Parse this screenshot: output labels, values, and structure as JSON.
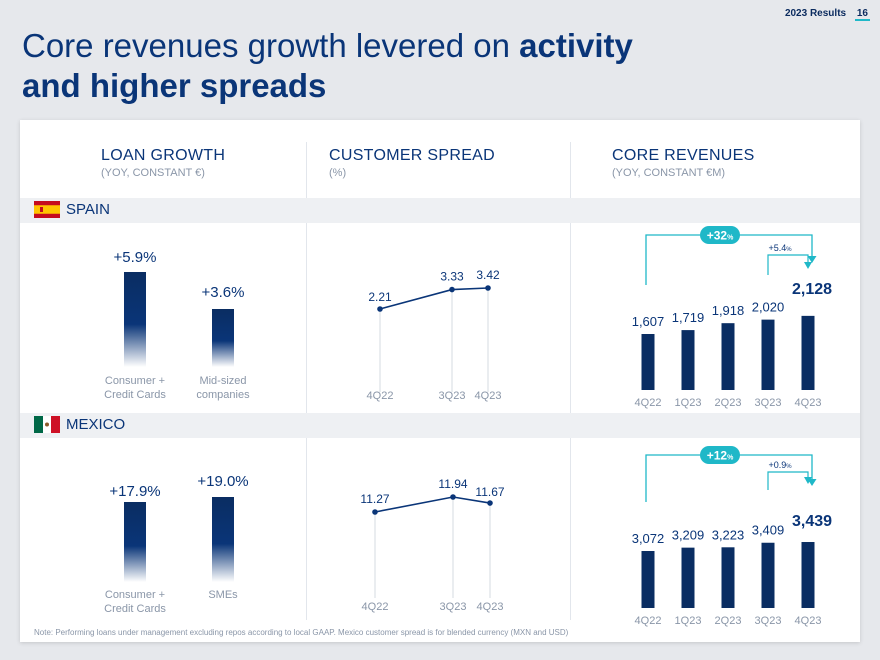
{
  "header": {
    "report": "2023 Results",
    "page": "16"
  },
  "title": {
    "line1_normal": "Core revenues growth levered on ",
    "line1_bold": "activity",
    "line2_bold": "and higher spreads"
  },
  "columns": {
    "loan": {
      "title": "LOAN GROWTH",
      "subtitle": "(YOY, CONSTANT €)"
    },
    "spread": {
      "title": "CUSTOMER SPREAD",
      "subtitle": "(%)"
    },
    "core": {
      "title": "CORE REVENUES",
      "subtitle": "(YOY, CONSTANT €M)"
    }
  },
  "regions": {
    "spain": "SPAIN",
    "mexico": "MEXICO"
  },
  "colors": {
    "navy": "#0a3578",
    "teal": "#1fb8c8",
    "grey": "#8a96a8"
  },
  "note": "Note: Performing loans under management excluding repos according to local GAAP. Mexico customer spread is for blended currency (MXN and USD)",
  "chart_data": [
    {
      "id": "spain-loan-growth",
      "type": "bar",
      "title": "LOAN GROWTH — SPAIN",
      "categories": [
        "Consumer +\nCredit Cards",
        "Mid-sized\ncompanies"
      ],
      "values": [
        5.9,
        3.6
      ],
      "labels": [
        "+5.9%",
        "+3.6%"
      ],
      "unit": "%"
    },
    {
      "id": "spain-customer-spread",
      "type": "line",
      "title": "CUSTOMER SPREAD — SPAIN",
      "categories": [
        "4Q22",
        "3Q23",
        "4Q23"
      ],
      "values": [
        2.21,
        3.33,
        3.42
      ],
      "labels": [
        "2.21",
        "3.33",
        "3.42"
      ],
      "ylim": [
        0,
        4
      ]
    },
    {
      "id": "spain-core-revenues",
      "type": "bar",
      "title": "CORE REVENUES — SPAIN",
      "categories": [
        "4Q22",
        "1Q23",
        "2Q23",
        "3Q23",
        "4Q23"
      ],
      "values": [
        1607,
        1719,
        1918,
        2020,
        2128
      ],
      "labels": [
        "1,607",
        "1,719",
        "1,918",
        "2,020",
        "2,128"
      ],
      "yoy_growth": "+32",
      "qoq_growth": "+5.4",
      "growth_unit": "%"
    },
    {
      "id": "mexico-loan-growth",
      "type": "bar",
      "title": "LOAN GROWTH — MEXICO",
      "categories": [
        "Consumer +\nCredit Cards",
        "SMEs"
      ],
      "values": [
        17.9,
        19.0
      ],
      "labels": [
        "+17.9%",
        "+19.0%"
      ],
      "unit": "%"
    },
    {
      "id": "mexico-customer-spread",
      "type": "line",
      "title": "CUSTOMER SPREAD — MEXICO",
      "categories": [
        "4Q22",
        "3Q23",
        "4Q23"
      ],
      "values": [
        11.27,
        11.94,
        11.67
      ],
      "labels": [
        "11.27",
        "11.94",
        "11.67"
      ]
    },
    {
      "id": "mexico-core-revenues",
      "type": "bar",
      "title": "CORE REVENUES — MEXICO",
      "categories": [
        "4Q22",
        "1Q23",
        "2Q23",
        "3Q23",
        "4Q23"
      ],
      "values": [
        3072,
        3209,
        3223,
        3409,
        3439
      ],
      "labels": [
        "3,072",
        "3,209",
        "3,223",
        "3,409",
        "3,439"
      ],
      "yoy_growth": "+12",
      "qoq_growth": "+0.9",
      "growth_unit": "%"
    }
  ]
}
